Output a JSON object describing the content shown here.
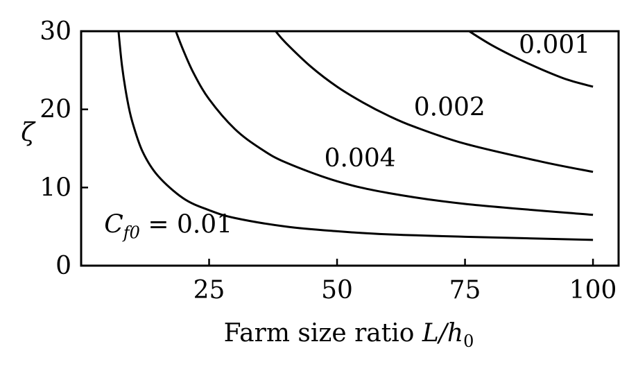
{
  "chart_data": {
    "type": "line",
    "xlabel_text": "Farm size ratio ",
    "xlabel_math": "L/h",
    "xlabel_sub": "0",
    "ylabel": "ζ",
    "xlim": [
      0,
      105
    ],
    "ylim": [
      0,
      30
    ],
    "xticks": [
      25,
      50,
      75,
      100
    ],
    "yticks": [
      0,
      10,
      20,
      30
    ],
    "series": [
      {
        "cf0": "0.01",
        "label_prefix_math": "C",
        "label_prefix_sub": "f0",
        "label_text": " = 0.01",
        "x": [
          7.3,
          8,
          9,
          10,
          12,
          15,
          20,
          25,
          30,
          40,
          50,
          60,
          75,
          100
        ],
        "y": [
          30,
          25.5,
          21.3,
          18.4,
          14.6,
          11.5,
          8.6,
          7.1,
          6.1,
          5.0,
          4.4,
          4.0,
          3.7,
          3.3
        ]
      },
      {
        "cf0": "0.004",
        "label_text": "0.004",
        "x": [
          18.5,
          20,
          22,
          25,
          30,
          35,
          40,
          50,
          60,
          75,
          100
        ],
        "y": [
          30,
          27.5,
          24.6,
          21.3,
          17.5,
          15.0,
          13.2,
          10.8,
          9.3,
          7.9,
          6.5
        ]
      },
      {
        "cf0": "0.002",
        "label_text": "0.002",
        "x": [
          38,
          40,
          45,
          50,
          55,
          60,
          65,
          75,
          90,
          100
        ],
        "y": [
          30,
          28.5,
          25.4,
          22.9,
          20.9,
          19.2,
          17.8,
          15.6,
          13.3,
          12.0
        ]
      },
      {
        "cf0": "0.001",
        "label_text": "0.001",
        "x": [
          75.8,
          80,
          85,
          90,
          95,
          100
        ],
        "y": [
          30,
          28.3,
          26.6,
          25.1,
          23.8,
          22.9
        ]
      }
    ]
  }
}
